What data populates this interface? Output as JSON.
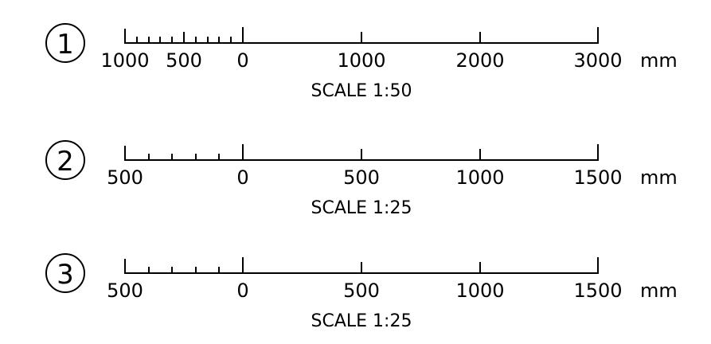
{
  "scale_bars": [
    {
      "number": "1",
      "left_labels": [
        "1000",
        "500"
      ],
      "zero_label": "0",
      "right_labels": [
        "1000",
        "2000",
        "3000"
      ],
      "unit": "mm",
      "caption": "SCALE 1:50"
    },
    {
      "number": "2",
      "left_labels": [
        "500"
      ],
      "zero_label": "0",
      "right_labels": [
        "500",
        "1000",
        "1500"
      ],
      "unit": "mm",
      "caption": "SCALE 1:25"
    },
    {
      "number": "3",
      "left_labels": [
        "500"
      ],
      "zero_label": "0",
      "right_labels": [
        "500",
        "1000",
        "1500"
      ],
      "unit": "mm",
      "caption": "SCALE 1:25"
    }
  ]
}
